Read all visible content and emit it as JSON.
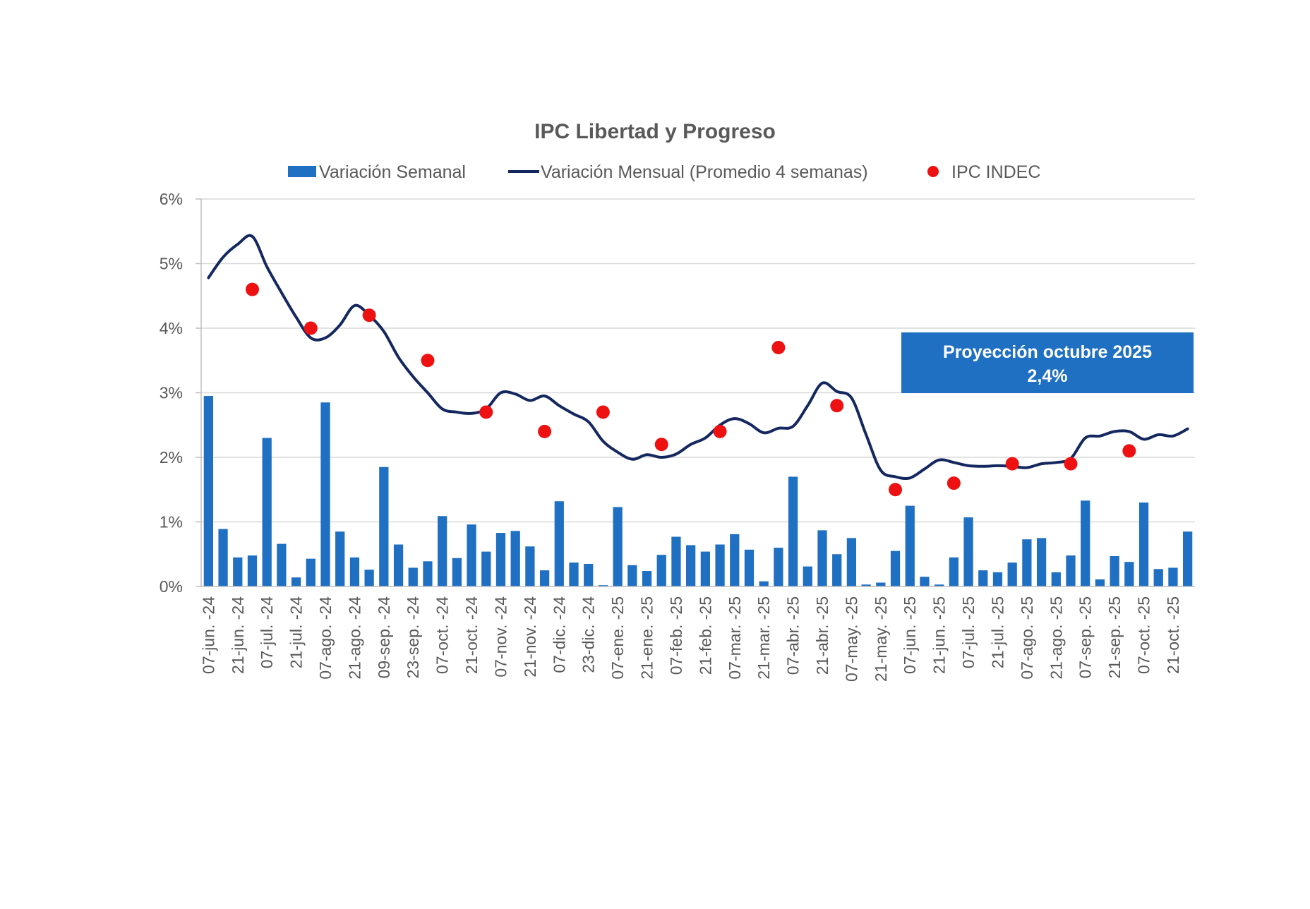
{
  "chart_data": {
    "type": "bar+line+scatter",
    "title": "IPC Libertad y Progreso",
    "ylim": [
      0,
      6
    ],
    "y_ticks": [
      "0%",
      "1%",
      "2%",
      "3%",
      "4%",
      "5%",
      "6%"
    ],
    "grid": true,
    "legend_position": "top",
    "x_labels": [
      "07-jun. -24",
      "21-jun. -24",
      "07-jul. -24",
      "21-jul. -24",
      "07-ago. -24",
      "21-ago. -24",
      "09-sep. -24",
      "23-sep. -24",
      "07-oct. -24",
      "21-oct. -24",
      "07-nov. -24",
      "21-nov. -24",
      "07-dic. -24",
      "23-dic. -24",
      "07-ene. -25",
      "21-ene. -25",
      "07-feb. -25",
      "21-feb. -25",
      "07-mar. -25",
      "21-mar. -25",
      "07-abr. -25",
      "21-abr. -25",
      "07-may. -25",
      "21-may. -25",
      "07-jun. -25",
      "21-jun. -25",
      "07-jul. -25",
      "21-jul. -25",
      "07-ago. -25",
      "21-ago. -25",
      "07-sep. -25",
      "21-sep. -25",
      "07-oct. -25",
      "21-oct. -25"
    ],
    "series": [
      {
        "name": "Variación Semanal",
        "type": "bar",
        "color": "#1F6FC2",
        "values": [
          2.95,
          0.89,
          0.45,
          0.48,
          2.3,
          0.66,
          0.14,
          0.43,
          2.85,
          0.85,
          0.45,
          0.26,
          1.85,
          0.65,
          0.29,
          0.39,
          1.09,
          0.44,
          0.96,
          0.54,
          0.83,
          0.86,
          0.62,
          0.25,
          1.32,
          0.37,
          0.35,
          0.02,
          1.23,
          0.33,
          0.24,
          0.49,
          0.77,
          0.64,
          0.54,
          0.65,
          0.81,
          0.57,
          0.08,
          0.6,
          1.7,
          0.31,
          0.87,
          0.5,
          0.75,
          0.03,
          0.06,
          0.55,
          1.25,
          0.15,
          0.03,
          0.45,
          1.07,
          0.25,
          0.22,
          0.37,
          0.73,
          0.75,
          0.22,
          0.48,
          1.33,
          0.11,
          0.47,
          0.38,
          1.3,
          0.27,
          0.29,
          0.85
        ]
      },
      {
        "name": "Variación Mensual (Promedio 4 semanas)",
        "type": "line",
        "color": "#14285F",
        "values": [
          4.78,
          5.1,
          5.3,
          5.42,
          4.95,
          4.55,
          4.17,
          3.85,
          3.85,
          4.05,
          4.35,
          4.2,
          3.95,
          3.55,
          3.25,
          3.0,
          2.75,
          2.7,
          2.68,
          2.75,
          3.0,
          2.98,
          2.88,
          2.95,
          2.8,
          2.67,
          2.55,
          2.25,
          2.08,
          1.97,
          2.04,
          2.0,
          2.05,
          2.2,
          2.3,
          2.5,
          2.6,
          2.52,
          2.38,
          2.45,
          2.48,
          2.8,
          3.15,
          3.02,
          2.92,
          2.35,
          1.8,
          1.7,
          1.68,
          1.82,
          1.96,
          1.92,
          1.87,
          1.86,
          1.87,
          1.86,
          1.84,
          1.9,
          1.92,
          1.98,
          2.3,
          2.33,
          2.4,
          2.4,
          2.28,
          2.35,
          2.33,
          2.44
        ]
      },
      {
        "name": "IPC INDEC",
        "type": "scatter",
        "color": "#EE1111",
        "points": [
          {
            "x_index": 3,
            "y": 4.6
          },
          {
            "x_index": 7,
            "y": 4.0
          },
          {
            "x_index": 11,
            "y": 4.2
          },
          {
            "x_index": 15,
            "y": 3.5
          },
          {
            "x_index": 19,
            "y": 2.7
          },
          {
            "x_index": 23,
            "y": 2.4
          },
          {
            "x_index": 27,
            "y": 2.7
          },
          {
            "x_index": 31,
            "y": 2.2
          },
          {
            "x_index": 35,
            "y": 2.4
          },
          {
            "x_index": 39,
            "y": 3.7
          },
          {
            "x_index": 43,
            "y": 2.8
          },
          {
            "x_index": 47,
            "y": 1.5
          },
          {
            "x_index": 51,
            "y": 1.6
          },
          {
            "x_index": 55,
            "y": 1.9
          },
          {
            "x_index": 59,
            "y": 1.9
          },
          {
            "x_index": 63,
            "y": 2.1
          }
        ]
      }
    ],
    "annotation": {
      "line1": "Proyección octubre 2025",
      "line2": "2,4%",
      "color": "#1F6FC2"
    }
  }
}
